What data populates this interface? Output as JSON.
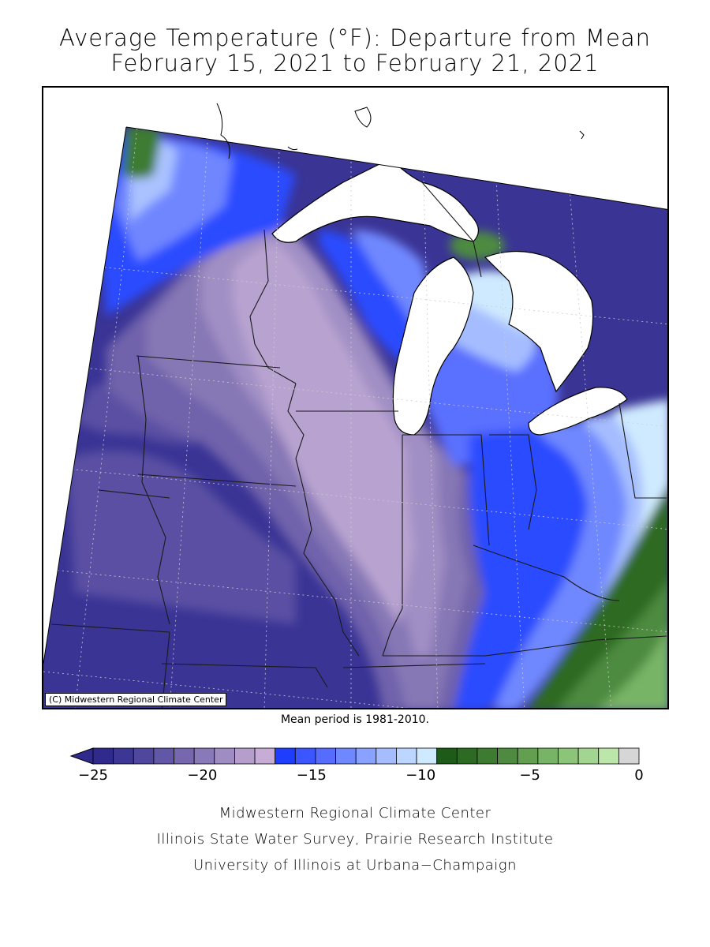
{
  "title": {
    "line1": "Average Temperature (°F): Departure from Mean",
    "line2": "February 15, 2021 to February 21, 2021"
  },
  "map": {
    "copyright": "(C) Midwestern Regional Climate Center",
    "note": "Mean period is 1981-2010."
  },
  "legend": {
    "colors": [
      "#2f2a8c",
      "#3c3694",
      "#4e479d",
      "#6157a6",
      "#7667ae",
      "#8a79b8",
      "#9f8cc2",
      "#b59dcc",
      "#c7acd5",
      "#1f3dff",
      "#3b55ff",
      "#566cff",
      "#7088ff",
      "#8aa2ff",
      "#a5bdff",
      "#bcd6ff",
      "#cfeaff",
      "#1e5a18",
      "#2d6b24",
      "#3d7b30",
      "#4e8b40",
      "#62a050",
      "#78b466",
      "#8cc57a",
      "#a2d590",
      "#bde6aa",
      "#d6d6d6"
    ],
    "tick_labels": [
      "−25",
      "−20",
      "−15",
      "−10",
      "−5",
      "0"
    ],
    "tick_values": [
      -25,
      -20,
      -15,
      -10,
      -5,
      0
    ]
  },
  "credits": {
    "line1": "Midwestern Regional Climate Center",
    "line2": "Illinois State Water Survey, Prairie Research Institute",
    "line3": "University of Illinois at Urbana−Champaign"
  }
}
